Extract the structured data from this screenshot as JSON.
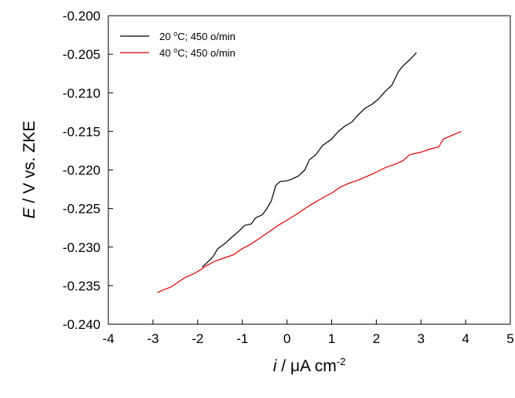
{
  "chart_data": {
    "type": "line",
    "xlabel": {
      "italic": "i",
      "rest": " / μA cm",
      "sup": "-2"
    },
    "ylabel": {
      "italic": "E",
      "rest": " / V vs. ZKE"
    },
    "xlim": [
      -4,
      5
    ],
    "ylim": [
      -0.24,
      -0.2
    ],
    "xticks": [
      "-4",
      "-3",
      "-2",
      "-1",
      "0",
      "1",
      "2",
      "3",
      "4",
      "5"
    ],
    "yticks": [
      "-0.200",
      "-0.205",
      "-0.210",
      "-0.215",
      "-0.220",
      "-0.225",
      "-0.230",
      "-0.235",
      "-0.240"
    ],
    "grid": false,
    "legend_position": "top-left",
    "series": [
      {
        "name": {
          "pre": "20 ",
          "sup": "o",
          "post": "C; 450 o/min"
        },
        "color": "#000000",
        "points": [
          [
            -1.9,
            -0.2326
          ],
          [
            -1.75,
            -0.2318
          ],
          [
            -1.65,
            -0.2312
          ],
          [
            -1.55,
            -0.2302
          ],
          [
            -1.4,
            -0.2296
          ],
          [
            -1.25,
            -0.2288
          ],
          [
            -1.05,
            -0.2278
          ],
          [
            -0.95,
            -0.2272
          ],
          [
            -0.8,
            -0.227
          ],
          [
            -0.7,
            -0.2262
          ],
          [
            -0.55,
            -0.2258
          ],
          [
            -0.45,
            -0.225
          ],
          [
            -0.35,
            -0.224
          ],
          [
            -0.25,
            -0.222
          ],
          [
            -0.15,
            -0.2215
          ],
          [
            0.0,
            -0.2214
          ],
          [
            0.1,
            -0.2212
          ],
          [
            0.25,
            -0.2208
          ],
          [
            0.4,
            -0.22
          ],
          [
            0.5,
            -0.2187
          ],
          [
            0.65,
            -0.218
          ],
          [
            0.8,
            -0.2168
          ],
          [
            1.0,
            -0.216
          ],
          [
            1.15,
            -0.215
          ],
          [
            1.3,
            -0.2143
          ],
          [
            1.45,
            -0.2138
          ],
          [
            1.6,
            -0.2128
          ],
          [
            1.75,
            -0.212
          ],
          [
            1.9,
            -0.2115
          ],
          [
            2.05,
            -0.2108
          ],
          [
            2.2,
            -0.2098
          ],
          [
            2.35,
            -0.209
          ],
          [
            2.5,
            -0.2072
          ],
          [
            2.6,
            -0.2065
          ],
          [
            2.75,
            -0.2057
          ],
          [
            2.9,
            -0.2048
          ]
        ]
      },
      {
        "name": {
          "pre": "40 ",
          "sup": "o",
          "post": "C; 450 o/min"
        },
        "color": "#dd0000",
        "points": [
          [
            -2.9,
            -0.2359
          ],
          [
            -2.75,
            -0.2355
          ],
          [
            -2.6,
            -0.2352
          ],
          [
            -2.45,
            -0.2346
          ],
          [
            -2.3,
            -0.234
          ],
          [
            -2.1,
            -0.2335
          ],
          [
            -1.95,
            -0.233
          ],
          [
            -1.8,
            -0.2324
          ],
          [
            -1.6,
            -0.2318
          ],
          [
            -1.4,
            -0.2314
          ],
          [
            -1.2,
            -0.231
          ],
          [
            -1.0,
            -0.2302
          ],
          [
            -0.8,
            -0.2296
          ],
          [
            -0.6,
            -0.2288
          ],
          [
            -0.4,
            -0.228
          ],
          [
            -0.2,
            -0.2272
          ],
          [
            0.0,
            -0.2265
          ],
          [
            0.2,
            -0.2258
          ],
          [
            0.4,
            -0.225
          ],
          [
            0.6,
            -0.2243
          ],
          [
            0.8,
            -0.2236
          ],
          [
            1.0,
            -0.223
          ],
          [
            1.2,
            -0.2222
          ],
          [
            1.4,
            -0.2217
          ],
          [
            1.6,
            -0.2213
          ],
          [
            1.8,
            -0.2208
          ],
          [
            2.0,
            -0.2203
          ],
          [
            2.2,
            -0.2197
          ],
          [
            2.4,
            -0.2193
          ],
          [
            2.6,
            -0.2188
          ],
          [
            2.75,
            -0.218
          ],
          [
            3.0,
            -0.2177
          ],
          [
            3.2,
            -0.2173
          ],
          [
            3.4,
            -0.217
          ],
          [
            3.5,
            -0.216
          ],
          [
            3.7,
            -0.2155
          ],
          [
            3.9,
            -0.215
          ]
        ]
      }
    ]
  }
}
